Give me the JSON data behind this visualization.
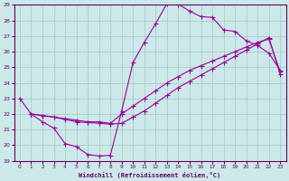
{
  "xlabel": "Windchill (Refroidissement éolien,°C)",
  "bg_color": "#cce8e8",
  "grid_color": "#aacccc",
  "line_color": "#990099",
  "xlim": [
    -0.5,
    23.5
  ],
  "ylim": [
    19,
    29
  ],
  "xticks": [
    0,
    1,
    2,
    3,
    4,
    5,
    6,
    7,
    8,
    9,
    10,
    11,
    12,
    13,
    14,
    15,
    16,
    17,
    18,
    19,
    20,
    21,
    22,
    23
  ],
  "yticks": [
    19,
    20,
    21,
    22,
    23,
    24,
    25,
    26,
    27,
    28,
    29
  ],
  "line1_x": [
    0,
    1,
    2,
    3,
    4,
    5,
    6,
    7,
    8,
    9,
    10,
    11,
    12,
    13,
    14,
    15,
    16,
    17,
    18,
    19,
    20,
    21,
    22,
    23
  ],
  "line1_y": [
    23.0,
    22.0,
    21.5,
    21.1,
    20.1,
    19.9,
    19.4,
    19.3,
    19.35,
    22.2,
    25.3,
    26.6,
    27.8,
    29.1,
    29.05,
    28.6,
    28.25,
    28.2,
    27.4,
    27.3,
    26.7,
    26.4,
    25.9,
    24.8
  ],
  "line2_x": [
    1,
    2,
    3,
    4,
    5,
    6,
    7,
    8,
    9,
    10,
    11,
    12,
    13,
    14,
    15,
    16,
    17,
    18,
    19,
    20,
    21,
    22,
    23
  ],
  "line2_y": [
    22.0,
    21.9,
    21.8,
    21.7,
    21.6,
    21.5,
    21.5,
    21.4,
    22.0,
    22.5,
    23.0,
    23.5,
    24.0,
    24.4,
    24.8,
    25.1,
    25.4,
    25.7,
    26.0,
    26.3,
    26.6,
    26.8,
    24.7
  ],
  "line3_x": [
    1,
    2,
    3,
    4,
    5,
    6,
    7,
    8,
    9,
    10,
    11,
    12,
    13,
    14,
    15,
    16,
    17,
    18,
    19,
    20,
    21,
    22,
    23
  ],
  "line3_y": [
    22.0,
    21.9,
    21.8,
    21.65,
    21.5,
    21.45,
    21.4,
    21.35,
    21.4,
    21.8,
    22.2,
    22.7,
    23.2,
    23.7,
    24.1,
    24.5,
    24.9,
    25.3,
    25.7,
    26.1,
    26.5,
    26.9,
    24.55
  ]
}
